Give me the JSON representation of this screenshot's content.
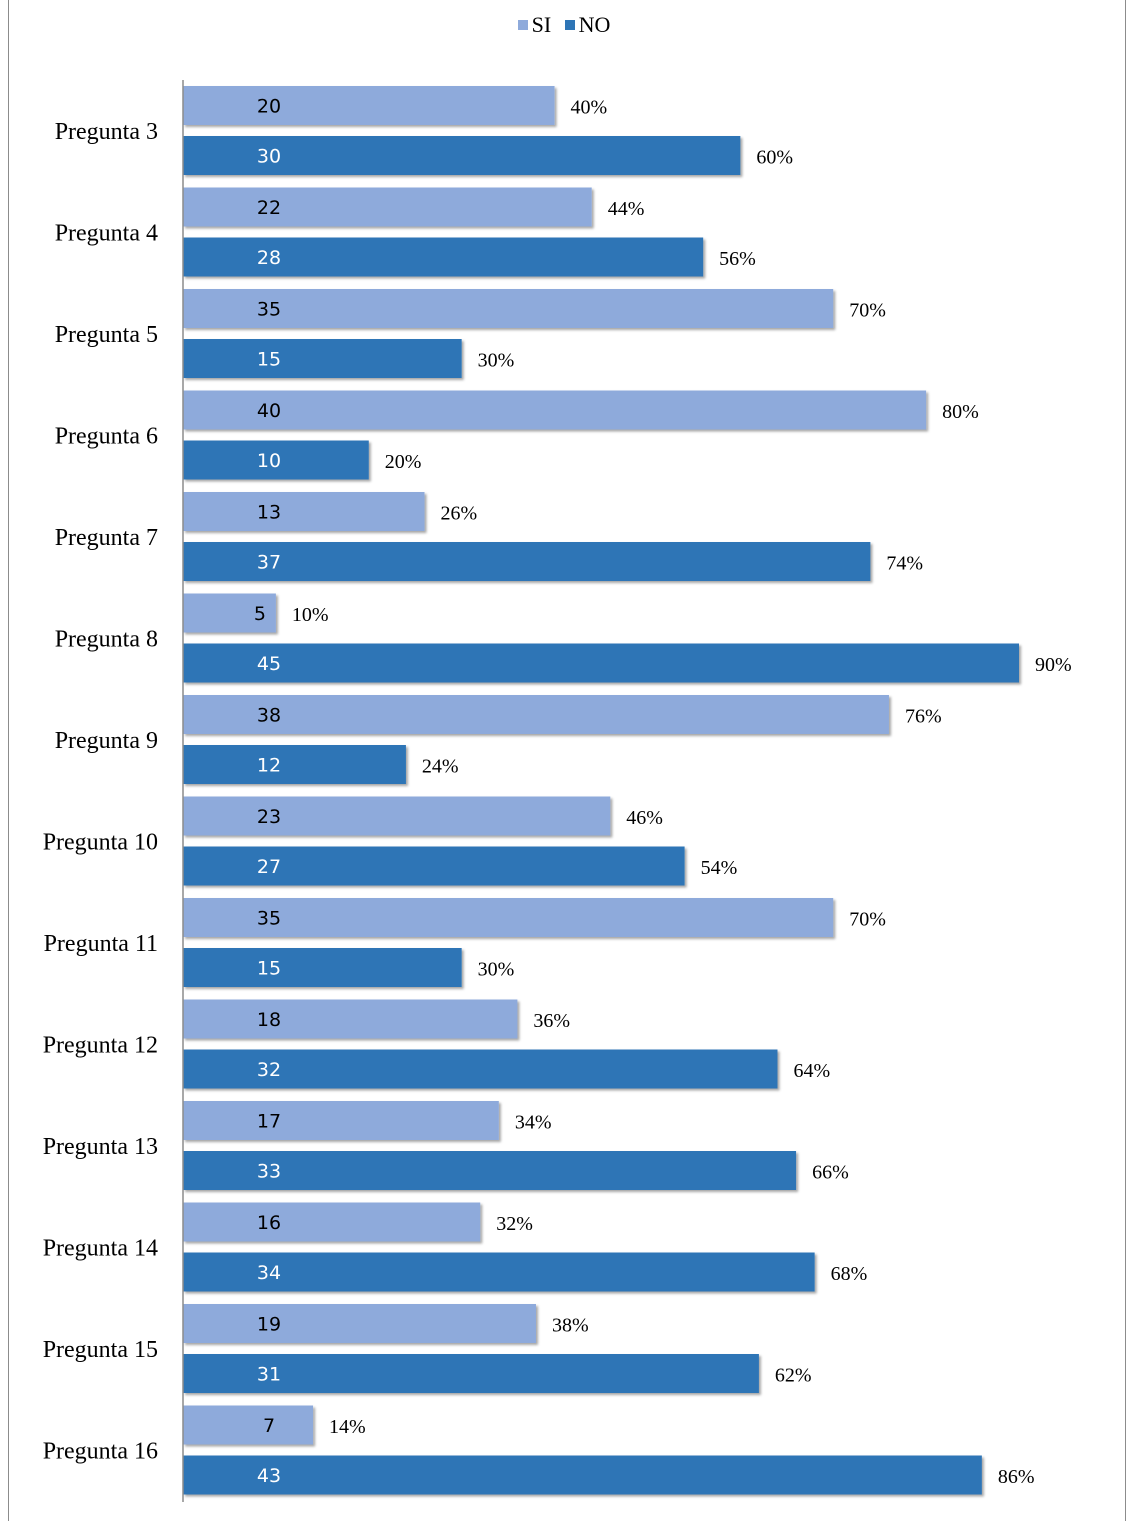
{
  "chart_data": {
    "type": "bar",
    "orientation": "horizontal",
    "categories": [
      "Pregunta 3",
      "Pregunta 4",
      "Pregunta 5",
      "Pregunta 6",
      "Pregunta 7",
      "Pregunta 8",
      "Pregunta 9",
      "Pregunta 10",
      "Pregunta 11",
      "Pregunta 12",
      "Pregunta 13",
      "Pregunta 14",
      "Pregunta 15",
      "Pregunta 16"
    ],
    "series": [
      {
        "name": "SI",
        "color": "#8eaadb",
        "label_color": "#000000",
        "values": [
          20,
          22,
          35,
          40,
          13,
          5,
          38,
          23,
          35,
          18,
          17,
          16,
          19,
          7
        ],
        "percent_labels": [
          "40%",
          "44%",
          "70%",
          "80%",
          "26%",
          "10%",
          "76%",
          "46%",
          "70%",
          "36%",
          "34%",
          "32%",
          "38%",
          "14%"
        ]
      },
      {
        "name": "NO",
        "color": "#2e75b6",
        "label_color": "#ffffff",
        "values": [
          30,
          28,
          15,
          10,
          37,
          45,
          12,
          27,
          15,
          32,
          33,
          34,
          31,
          43
        ],
        "percent_labels": [
          "60%",
          "56%",
          "30%",
          "20%",
          "74%",
          "90%",
          "24%",
          "54%",
          "30%",
          "64%",
          "66%",
          "68%",
          "62%",
          "86%"
        ]
      }
    ],
    "xlim": [
      0,
      50
    ],
    "legend_position": "top",
    "grid": false
  }
}
